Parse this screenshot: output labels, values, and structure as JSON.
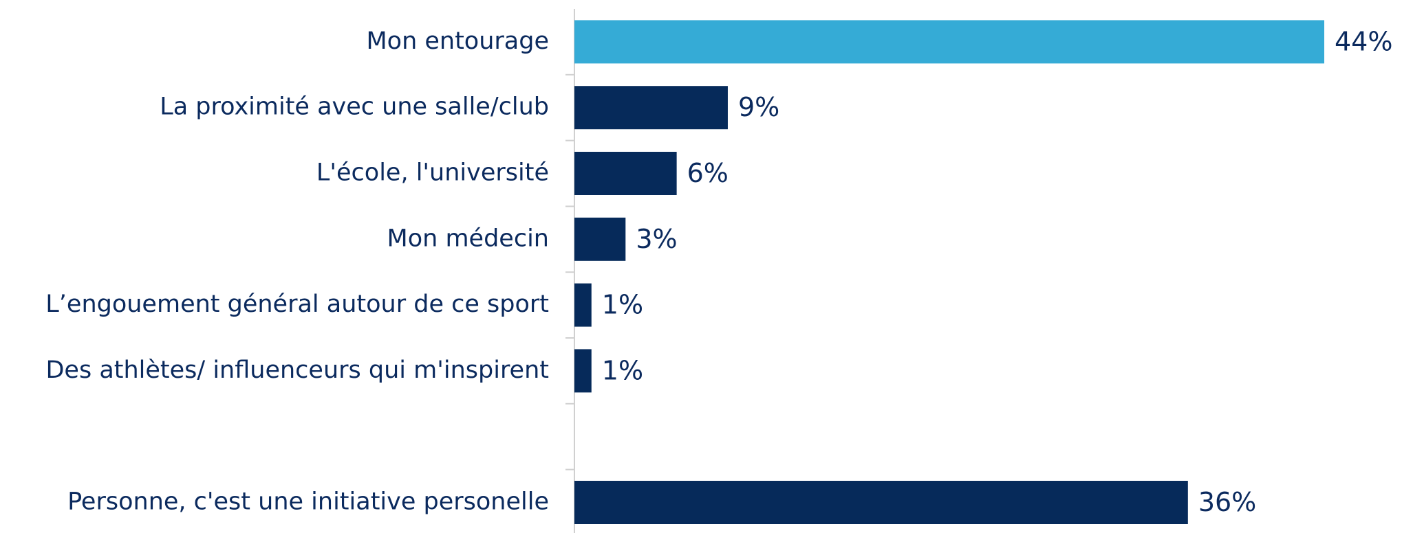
{
  "chart_data": {
    "type": "bar",
    "orientation": "horizontal",
    "categories": [
      "Mon entourage",
      "La proximité avec une salle/club",
      "L'école, l'université",
      "Mon médecin",
      "L’engouement général autour de ce sport",
      "Des athlètes/ influenceurs qui m'inspirent",
      null,
      "Personne, c'est une initiative personelle"
    ],
    "values": [
      44,
      9,
      6,
      3,
      1,
      1,
      null,
      36
    ],
    "value_labels": [
      "44%",
      "9%",
      "6%",
      "3%",
      "1%",
      "1%",
      null,
      "36%"
    ],
    "colors": [
      "#35abd6",
      "#062a5a",
      "#062a5a",
      "#062a5a",
      "#062a5a",
      "#062a5a",
      null,
      "#062a5a"
    ]
  }
}
